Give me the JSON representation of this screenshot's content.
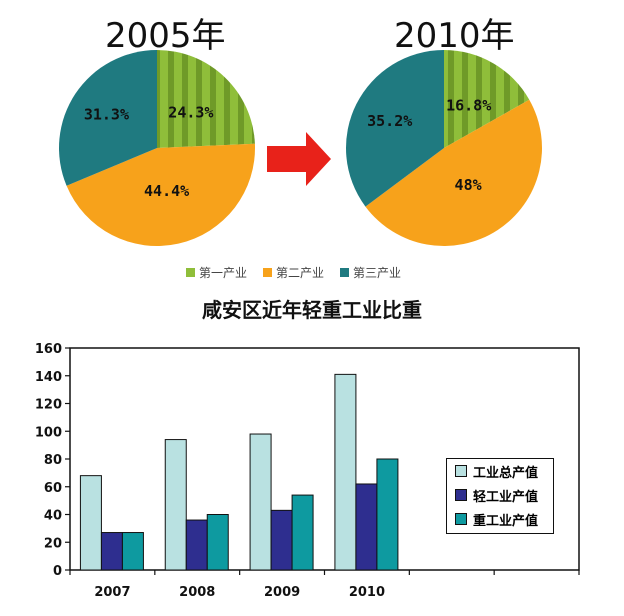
{
  "pies": [
    {
      "title": "2005年",
      "slices": [
        {
          "name": "第一产业",
          "value": 24.3,
          "label": "24.3%"
        },
        {
          "name": "第二产业",
          "value": 44.4,
          "label": "44.4%"
        },
        {
          "name": "第三产业",
          "value": 31.3,
          "label": "31.3%"
        }
      ]
    },
    {
      "title": "2010年",
      "slices": [
        {
          "name": "第一产业",
          "value": 16.8,
          "label": "16.8%"
        },
        {
          "name": "第二产业",
          "value": 48.0,
          "label": "48%"
        },
        {
          "name": "第三产业",
          "value": 35.2,
          "label": "35.2%"
        }
      ]
    }
  ],
  "pie_legend": [
    "第一产业",
    "第二产业",
    "第三产业"
  ],
  "colors": {
    "primary": "#8fbe3a",
    "secondary": "#f7a21b",
    "tertiary": "#1f7a80",
    "arrow": "#e8221a",
    "total": "#b9e1e1",
    "light": "#2e2e8f",
    "heavy": "#0e9aa0"
  },
  "chart_data": {
    "type": "bar",
    "title": "咸安区近年轻重工业比重",
    "categories": [
      "2007",
      "2008",
      "2009",
      "2010"
    ],
    "series": [
      {
        "name": "工业总产值",
        "values": [
          68,
          94,
          98,
          141
        ]
      },
      {
        "name": "轻工业产值",
        "values": [
          27,
          36,
          43,
          62
        ]
      },
      {
        "name": "重工业产值",
        "values": [
          27,
          40,
          54,
          80
        ]
      }
    ],
    "ylim": [
      0,
      160
    ],
    "yticks": [
      "0",
      "20",
      "40",
      "60",
      "80",
      "100",
      "120",
      "140",
      "160"
    ],
    "grid": false,
    "legend": "right"
  }
}
